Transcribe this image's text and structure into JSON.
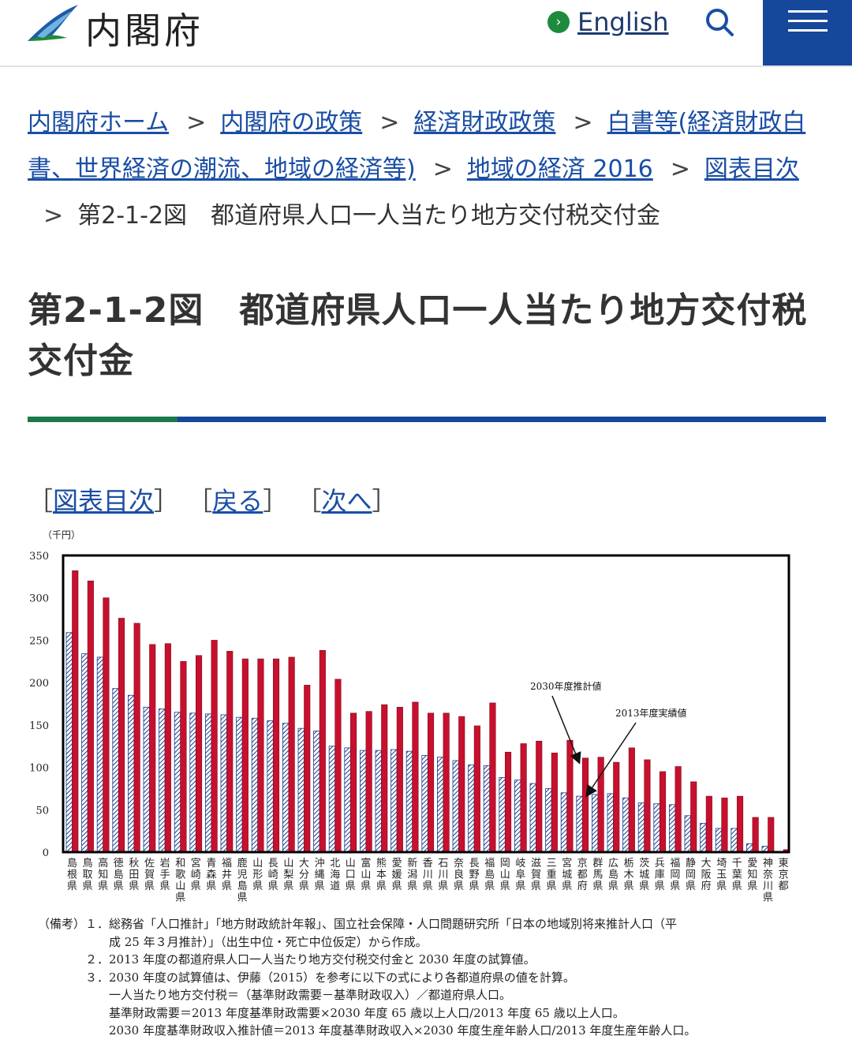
{
  "header": {
    "site_name": "内閣府",
    "lang_label": "English",
    "lang_icon": "chevron-right-icon",
    "search_icon": "search-icon",
    "menu_icon": "hamburger-menu-icon",
    "brand_color": "#15489b",
    "accent_color": "#1e8a3e"
  },
  "breadcrumb": {
    "items": [
      "内閣府ホーム",
      "内閣府の政策",
      "経済財政政策",
      "白書等(経済財政白書、世界経済の潮流、地域の経済等)",
      "地域の経済 2016",
      "図表目次"
    ],
    "separator": ">",
    "current": "第2-1-2図　都道府県人口一人当たり地方交付税交付金"
  },
  "page_title": "第2-1-2図　都道府県人口一人当たり地方交付税交付金",
  "nav_links": {
    "index": "図表目次",
    "back": "戻る",
    "next": "次へ",
    "open": "［",
    "close": "］"
  },
  "chart_data": {
    "type": "bar",
    "ylabel": "（千円）",
    "ylim": [
      0,
      350
    ],
    "yticks": [
      0,
      50,
      100,
      150,
      200,
      250,
      300,
      350
    ],
    "categories": [
      "島根県",
      "鳥取県",
      "高知県",
      "徳島県",
      "秋田県",
      "佐賀県",
      "岩手県",
      "和歌山県",
      "宮崎県",
      "青森県",
      "福井県",
      "鹿児島県",
      "山形県",
      "長崎県",
      "山梨県",
      "大分県",
      "沖縄県",
      "北海道",
      "山口県",
      "富山県",
      "熊本県",
      "愛媛県",
      "新潟県",
      "香川県",
      "石川県",
      "奈良県",
      "長野県",
      "福島県",
      "岡山県",
      "岐阜県",
      "滋賀県",
      "三重県",
      "宮城県",
      "京都府",
      "群馬県",
      "広島県",
      "栃木県",
      "茨城県",
      "兵庫県",
      "福岡県",
      "静岡県",
      "大阪府",
      "埼玉県",
      "千葉県",
      "愛知県",
      "神奈川県",
      "東京都"
    ],
    "series": [
      {
        "name": "2030年度推計値",
        "color": "#c8102e",
        "values": [
          332,
          320,
          300,
          276,
          270,
          245,
          246,
          225,
          232,
          250,
          237,
          228,
          228,
          228,
          230,
          197,
          238,
          204,
          164,
          166,
          174,
          171,
          177,
          164,
          164,
          160,
          149,
          176,
          118,
          128,
          131,
          117,
          132,
          111,
          112,
          106,
          123,
          109,
          95,
          101,
          83,
          66,
          64,
          66,
          41,
          41,
          3
        ]
      },
      {
        "name": "2013年度実績値",
        "color": "#1a3a8a",
        "values": [
          259,
          234,
          230,
          193,
          185,
          171,
          169,
          165,
          164,
          163,
          162,
          159,
          158,
          155,
          152,
          146,
          143,
          125,
          123,
          120,
          120,
          121,
          119,
          114,
          112,
          108,
          103,
          102,
          88,
          85,
          81,
          75,
          70,
          66,
          68,
          69,
          64,
          58,
          57,
          56,
          43,
          34,
          28,
          28,
          10,
          7,
          0
        ]
      }
    ],
    "annotations": [
      "2030年度推計値",
      "2013年度実績値"
    ],
    "frame_color": "#000000"
  },
  "notes": [
    "（備考）１．総務省「人口推計」「地方財政統計年報」、国立社会保障・人口問題研究所「日本の地域別将来推計人口（平",
    "　　　　　　成 25 年３月推計）」（出生中位・死亡中位仮定）から作成。",
    "　　　　２．2013 年度の都道府県人口一人当たり地方交付税交付金と 2030 年度の試算値。",
    "　　　　３．2030 年度の試算値は、伊藤（2015）を参考に以下の式により各都道府県の値を計算。",
    "　　　　　　一人当たり地方交付税＝（基準財政需要－基準財政収入）／都道府県人口。",
    "　　　　　　基準財政需要＝2013 年度基準財政需要×2030 年度 65 歳以上人口/2013 年度 65 歳以上人口。",
    "　　　　　　2030 年度基準財政収入推計値＝2013 年度基準財政収入×2030 年度生産年齢人口/2013 年度生産年齢人口。"
  ]
}
